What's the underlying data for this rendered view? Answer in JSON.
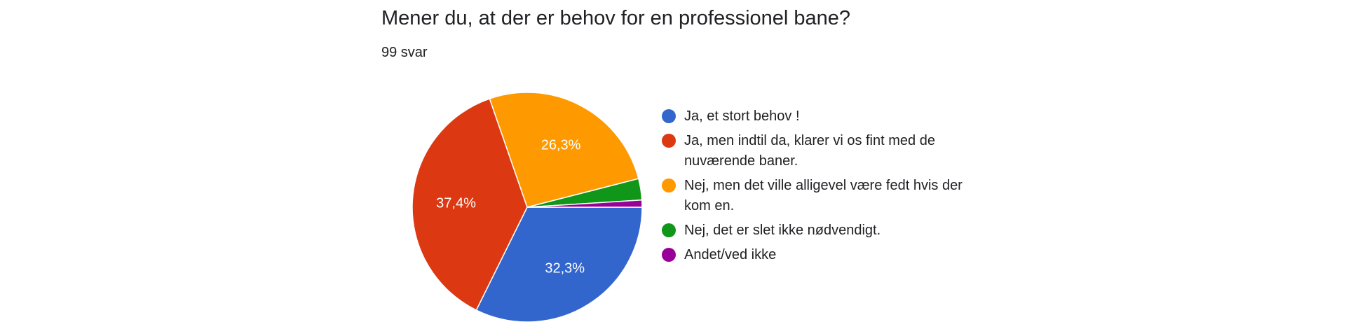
{
  "question": {
    "title": "Mener du, at der er behov for en professionel bane?",
    "response_count": "99 svar"
  },
  "chart_data": {
    "type": "pie",
    "categories": [
      "Ja, et stort behov !",
      "Ja, men indtil da, klarer vi os fint med de nuværende baner.",
      "Nej, men det ville alligevel være fedt hvis der kom en.",
      "Nej, det er slet ikke nødvendigt.",
      "Andet/ved ikke"
    ],
    "values": [
      32.3,
      37.4,
      26.3,
      3.0,
      1.0
    ],
    "data_labels": [
      "32,3%",
      "37,4%",
      "26,3%",
      "",
      ""
    ],
    "colors": [
      "#3366cc",
      "#dc3912",
      "#ff9900",
      "#109618",
      "#990099"
    ],
    "legend_position": "right"
  }
}
